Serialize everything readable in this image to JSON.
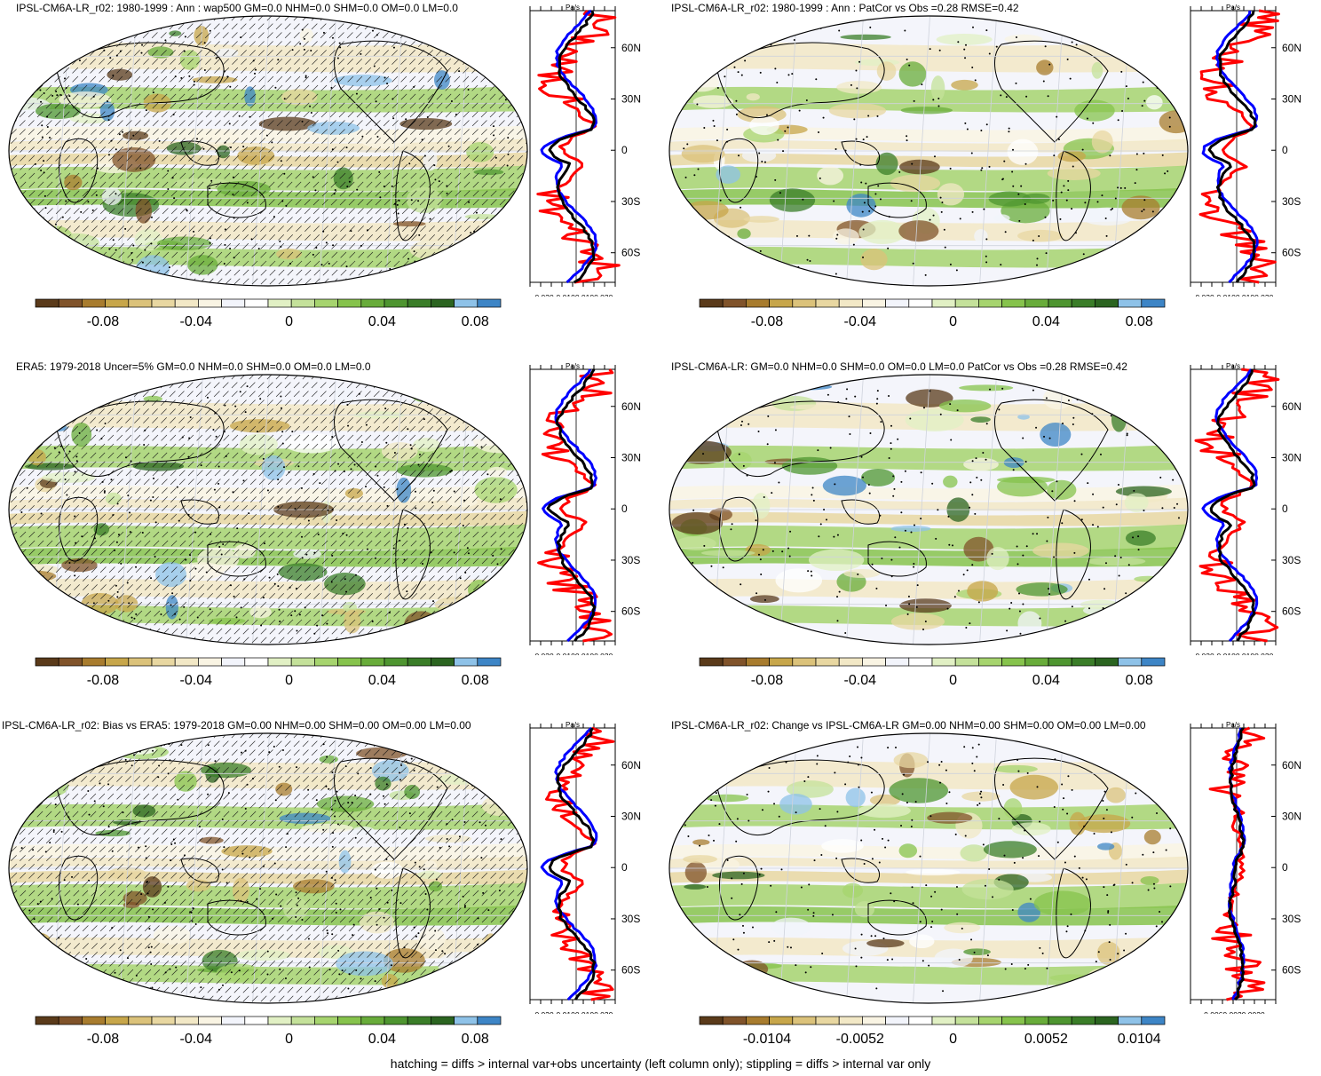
{
  "panels": [
    {
      "id": "p1",
      "title": "IPSL-CM6A-LR_r02: 1980-1999 : Ann : wap500 GM=0.0 NHM=0.0 SHM=0.0 OM=0.0 LM=0.0",
      "hatch": true,
      "zonal_ticks": [
        "-0.030",
        "-0.010",
        "0.010",
        "0.030"
      ],
      "cbar_labels": [
        "-0.08",
        "-0.04",
        "0",
        "0.04",
        "0.08"
      ]
    },
    {
      "id": "p2",
      "title": "IPSL-CM6A-LR_r02: 1980-1999 : Ann : PatCor vs Obs =0.28 RMSE=0.42",
      "hatch": false,
      "zonal_ticks": [
        "-0.030",
        "-0.010",
        "0.010",
        "0.030"
      ],
      "cbar_labels": [
        "-0.08",
        "-0.04",
        "0",
        "0.04",
        "0.08"
      ]
    },
    {
      "id": "p3",
      "title": "ERA5: 1979-2018 Uncer=5% GM=0.0 NHM=0.0 SHM=0.0 OM=0.0 LM=0.0",
      "hatch": true,
      "zonal_ticks": [
        "-0.030",
        "-0.010",
        "0.010",
        "0.030"
      ],
      "cbar_labels": [
        "-0.08",
        "-0.04",
        "0",
        "0.04",
        "0.08"
      ]
    },
    {
      "id": "p4",
      "title": "IPSL-CM6A-LR: GM=0.0 NHM=0.0 SHM=0.0 OM=0.0 LM=0.0 PatCor vs Obs =0.28 RMSE=0.42",
      "hatch": false,
      "zonal_ticks": [
        "-0.030",
        "-0.010",
        "0.010",
        "0.030"
      ],
      "cbar_labels": [
        "-0.08",
        "-0.04",
        "0",
        "0.04",
        "0.08"
      ]
    },
    {
      "id": "p5",
      "title": "IPSL-CM6A-LR_r02: Bias vs ERA5: 1979-2018 GM=0.00 NHM=0.00 SHM=0.00 OM=0.00 LM=0.00",
      "hatch": true,
      "zonal_ticks": [
        "-0.030",
        "-0.010",
        "0.010",
        "0.030"
      ],
      "cbar_labels": [
        "-0.08",
        "-0.04",
        "0",
        "0.04",
        "0.08"
      ]
    },
    {
      "id": "p6",
      "title": "IPSL-CM6A-LR_r02: Change vs IPSL-CM6A-LR GM=0.00 NHM=0.00 SHM=0.00 OM=0.00 LM=0.00",
      "hatch": false,
      "zonal_ticks": [
        "-0.006",
        "0.002",
        "0.002",
        "0.002"
      ],
      "zonal_tick_text": "-0.0060.0020.0020",
      "cbar_labels": [
        "-0.0104",
        "-0.0052",
        "0",
        "0.0052",
        "0.0104"
      ]
    }
  ],
  "zonal_unit": "Pa/s",
  "lat_labels": [
    "60N",
    "30N",
    "0",
    "30S",
    "60S"
  ],
  "colors": {
    "scale": [
      "#5a3a1a",
      "#80532a",
      "#a87c2e",
      "#c7a64a",
      "#dbc27a",
      "#e8d7a1",
      "#f2e8c6",
      "#f9f4e3",
      "#f2f4fb",
      "#ffffff",
      "#e1f0c4",
      "#c4e19a",
      "#a6d46e",
      "#86c34c",
      "#68ac3a",
      "#4e9530",
      "#3a7d28",
      "#2b6420",
      "#8ec2e8",
      "#3d85c6"
    ],
    "series_obs": "#ff0000",
    "series_model": "#0000ff",
    "series_mean": "#000000"
  },
  "chart_data": [
    {
      "type": "heatmap",
      "panel": "p1",
      "colorbar_range": [
        -0.1,
        0.1
      ],
      "zonal_xlim": [
        -0.03,
        0.03
      ],
      "zonal_ylim": [
        -90,
        90
      ]
    },
    {
      "type": "heatmap",
      "panel": "p2",
      "colorbar_range": [
        -0.1,
        0.1
      ],
      "zonal_xlim": [
        -0.03,
        0.03
      ],
      "zonal_ylim": [
        -90,
        90
      ]
    },
    {
      "type": "heatmap",
      "panel": "p3",
      "colorbar_range": [
        -0.1,
        0.1
      ],
      "zonal_xlim": [
        -0.03,
        0.03
      ],
      "zonal_ylim": [
        -90,
        90
      ]
    },
    {
      "type": "heatmap",
      "panel": "p4",
      "colorbar_range": [
        -0.1,
        0.1
      ],
      "zonal_xlim": [
        -0.03,
        0.03
      ],
      "zonal_ylim": [
        -90,
        90
      ]
    },
    {
      "type": "heatmap",
      "panel": "p5",
      "colorbar_range": [
        -0.1,
        0.1
      ],
      "zonal_xlim": [
        -0.03,
        0.03
      ],
      "zonal_ylim": [
        -90,
        90
      ]
    },
    {
      "type": "heatmap",
      "panel": "p6",
      "colorbar_range": [
        -0.013,
        0.013
      ],
      "zonal_xlim": [
        -0.007,
        0.003
      ],
      "zonal_ylim": [
        -90,
        90
      ]
    }
  ],
  "footer": "hatching = diffs > internal var+obs uncertainty (left column only); stippling = diffs > internal var only"
}
